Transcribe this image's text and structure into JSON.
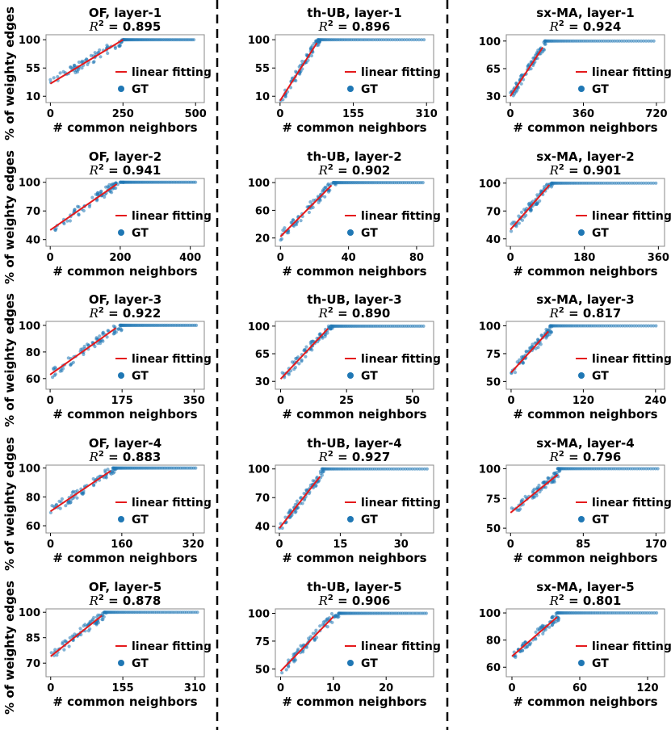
{
  "figure": {
    "xlabel": "# common neighbors",
    "ylabel": "% of weighty edges",
    "legend": {
      "line_label": "linear fitting",
      "points_label": "GT",
      "line_color": "#e41a1c",
      "points_color": "#1f77b4"
    }
  },
  "chart_data": [
    {
      "type": "scatter",
      "title": "OF, layer-1",
      "r2_prefix": "R",
      "r2_value": "0.895",
      "xlim": [
        -15,
        530
      ],
      "ylim": [
        0,
        108
      ],
      "xticks": [
        0,
        250,
        500
      ],
      "yticks": [
        10,
        55,
        100
      ],
      "fit": {
        "x": [
          0,
          250
        ],
        "y": [
          30,
          100
        ]
      },
      "knee": 250,
      "xmax": 500,
      "ystart": 30
    },
    {
      "type": "scatter",
      "title": "th-UB, layer-1",
      "r2_prefix": "R",
      "r2_value": "0.896",
      "xlim": [
        -10,
        325
      ],
      "ylim": [
        0,
        108
      ],
      "xticks": [
        0,
        155,
        310
      ],
      "yticks": [
        10,
        55,
        100
      ],
      "fit": {
        "x": [
          0,
          78
        ],
        "y": [
          3,
          95
        ]
      },
      "knee": 80,
      "xmax": 310,
      "ystart": 3
    },
    {
      "type": "scatter",
      "title": "sx-MA, layer-1",
      "r2_prefix": "R",
      "r2_value": "0.924",
      "xlim": [
        -20,
        760
      ],
      "ylim": [
        22,
        108
      ],
      "xticks": [
        0,
        360,
        720
      ],
      "yticks": [
        30,
        65,
        100
      ],
      "fit": {
        "x": [
          0,
          160
        ],
        "y": [
          30,
          92
        ]
      },
      "knee": 170,
      "xmax": 720,
      "ystart": 30
    },
    {
      "type": "scatter",
      "title": "OF, layer-2",
      "r2_prefix": "R",
      "r2_value": "0.941",
      "xlim": [
        -12,
        440
      ],
      "ylim": [
        33,
        104
      ],
      "xticks": [
        0,
        200,
        400
      ],
      "yticks": [
        40,
        70,
        100
      ],
      "fit": {
        "x": [
          0,
          190
        ],
        "y": [
          50,
          98
        ]
      },
      "knee": 200,
      "xmax": 420,
      "ystart": 50
    },
    {
      "type": "scatter",
      "title": "th-UB, layer-2",
      "r2_prefix": "R",
      "r2_value": "0.902",
      "xlim": [
        -3,
        90
      ],
      "ylim": [
        8,
        106
      ],
      "xticks": [
        0,
        40,
        80
      ],
      "yticks": [
        20,
        60,
        100
      ],
      "fit": {
        "x": [
          0,
          30
        ],
        "y": [
          22,
          96
        ]
      },
      "knee": 31,
      "xmax": 85,
      "ystart": 22
    },
    {
      "type": "scatter",
      "title": "sx-MA, layer-2",
      "r2_prefix": "R",
      "r2_value": "0.901",
      "xlim": [
        -10,
        375
      ],
      "ylim": [
        32,
        105
      ],
      "xticks": [
        0,
        180,
        360
      ],
      "yticks": [
        40,
        70,
        100
      ],
      "fit": {
        "x": [
          0,
          95
        ],
        "y": [
          50,
          98
        ]
      },
      "knee": 100,
      "xmax": 360,
      "ystart": 50
    },
    {
      "type": "scatter",
      "title": "OF, layer-3",
      "r2_prefix": "R",
      "r2_value": "0.922",
      "xlim": [
        -10,
        375
      ],
      "ylim": [
        52,
        103
      ],
      "xticks": [
        0,
        175,
        350
      ],
      "yticks": [
        60,
        80,
        100
      ],
      "fit": {
        "x": [
          0,
          160
        ],
        "y": [
          63,
          98
        ]
      },
      "knee": 170,
      "xmax": 360,
      "ystart": 63
    },
    {
      "type": "scatter",
      "title": "th-UB, layer-3",
      "r2_prefix": "R",
      "r2_value": "0.890",
      "xlim": [
        -2,
        58
      ],
      "ylim": [
        20,
        106
      ],
      "xticks": [
        0,
        25,
        50
      ],
      "yticks": [
        30,
        65,
        100
      ],
      "fit": {
        "x": [
          0,
          18
        ],
        "y": [
          33,
          97
        ]
      },
      "knee": 19,
      "xmax": 55,
      "ystart": 33
    },
    {
      "type": "scatter",
      "title": "sx-MA, layer-3",
      "r2_prefix": "R",
      "r2_value": "0.817",
      "xlim": [
        -8,
        255
      ],
      "ylim": [
        43,
        104
      ],
      "xticks": [
        0,
        120,
        240
      ],
      "yticks": [
        50,
        75,
        100
      ],
      "fit": {
        "x": [
          0,
          62
        ],
        "y": [
          58,
          95
        ]
      },
      "knee": 65,
      "xmax": 245,
      "ystart": 58
    },
    {
      "type": "scatter",
      "title": "OF, layer-4",
      "r2_prefix": "R",
      "r2_value": "0.883",
      "xlim": [
        -10,
        345
      ],
      "ylim": [
        55,
        102
      ],
      "xticks": [
        0,
        160,
        320
      ],
      "yticks": [
        60,
        80,
        100
      ],
      "fit": {
        "x": [
          0,
          135
        ],
        "y": [
          70,
          98
        ]
      },
      "knee": 140,
      "xmax": 330,
      "ystart": 70
    },
    {
      "type": "scatter",
      "title": "th-UB, layer-4",
      "r2_prefix": "R",
      "r2_value": "0.927",
      "xlim": [
        -1,
        38
      ],
      "ylim": [
        33,
        104
      ],
      "xticks": [
        0,
        15,
        30
      ],
      "yticks": [
        40,
        70,
        100
      ],
      "fit": {
        "x": [
          0,
          10
        ],
        "y": [
          38,
          92
        ]
      },
      "knee": 10.5,
      "xmax": 37,
      "ystart": 38
    },
    {
      "type": "scatter",
      "title": "sx-MA, layer-4",
      "r2_prefix": "R",
      "r2_value": "0.796",
      "xlim": [
        -5,
        180
      ],
      "ylim": [
        46,
        103
      ],
      "xticks": [
        0,
        85,
        170
      ],
      "yticks": [
        50,
        75,
        100
      ],
      "fit": {
        "x": [
          0,
          55
        ],
        "y": [
          63,
          95
        ]
      },
      "knee": 55,
      "xmax": 175,
      "ystart": 63
    },
    {
      "type": "scatter",
      "title": "OF, layer-5",
      "r2_prefix": "R",
      "r2_value": "0.878",
      "xlim": [
        -10,
        330
      ],
      "ylim": [
        62,
        102
      ],
      "xticks": [
        0,
        155,
        310
      ],
      "yticks": [
        70,
        85,
        100
      ],
      "fit": {
        "x": [
          0,
          110
        ],
        "y": [
          74,
          98
        ]
      },
      "knee": 115,
      "xmax": 320,
      "ystart": 74
    },
    {
      "type": "scatter",
      "title": "th-UB, layer-5",
      "r2_prefix": "R",
      "r2_value": "0.906",
      "xlim": [
        -1,
        29
      ],
      "ylim": [
        43,
        104
      ],
      "xticks": [
        0,
        10,
        20
      ],
      "yticks": [
        50,
        75,
        100
      ],
      "fit": {
        "x": [
          0,
          10
        ],
        "y": [
          48,
          97
        ]
      },
      "knee": 11,
      "xmax": 28,
      "ystart": 48
    },
    {
      "type": "scatter",
      "title": "sx-MA, layer-5",
      "r2_prefix": "R",
      "r2_value": "0.801",
      "xlim": [
        -5,
        135
      ],
      "ylim": [
        53,
        103
      ],
      "xticks": [
        0,
        60,
        120
      ],
      "yticks": [
        60,
        80,
        100
      ],
      "fit": {
        "x": [
          0,
          40
        ],
        "y": [
          68,
          97
        ]
      },
      "knee": 40,
      "xmax": 130,
      "ystart": 68
    }
  ]
}
